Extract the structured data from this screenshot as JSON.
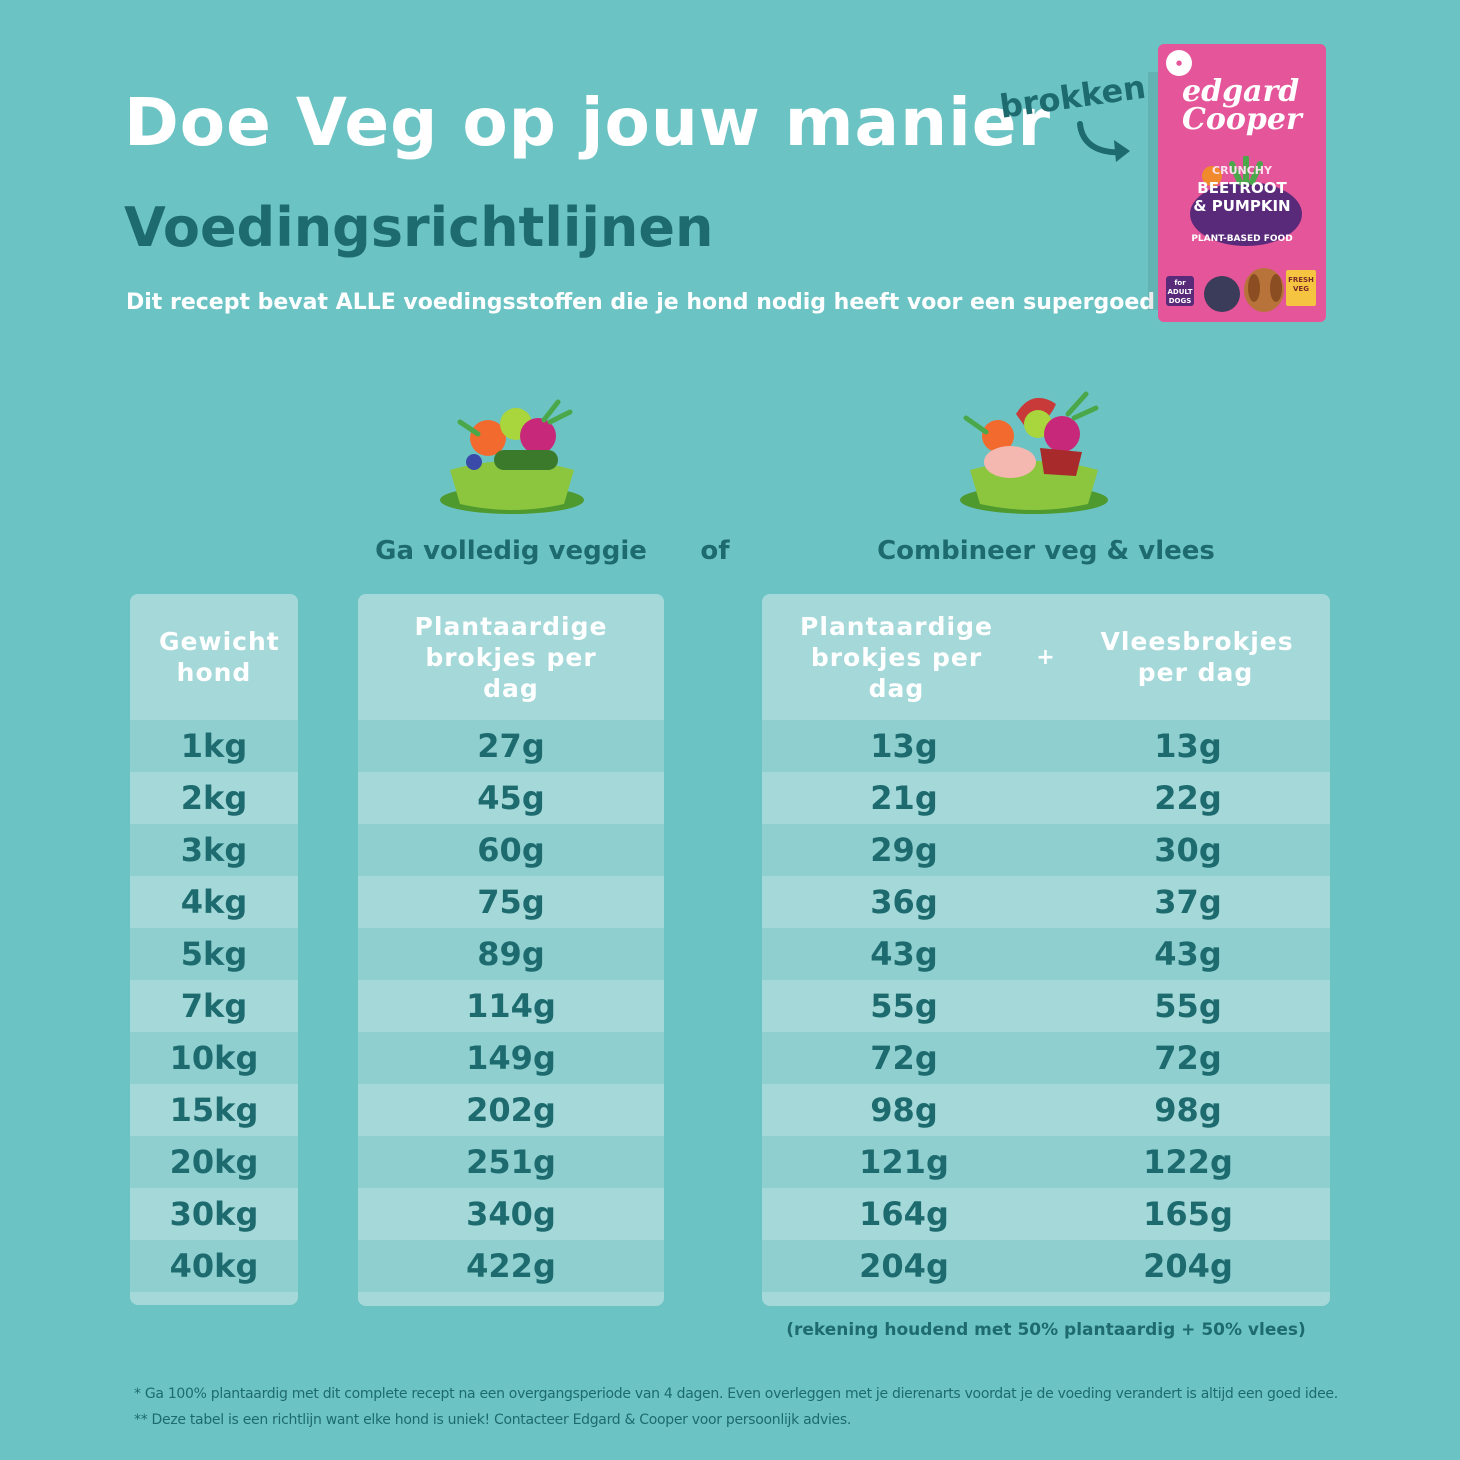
{
  "header": {
    "title": "Doe Veg op jouw manier",
    "subtitle": "Voedingsrichtlijnen",
    "tagline": "Dit recept bevat ALLE voedingsstoffen die je hond nodig heeft voor een supergoed leven",
    "brokken_label": "brokken"
  },
  "product": {
    "brand_line1": "edgard",
    "brand_line2": "Cooper",
    "crunchy": "CRUNCHY",
    "name_line1": "BEETROOT",
    "name_line2": "& PUMPKIN",
    "plant_based": "PLANT-BASED FOOD",
    "adult_badge": "for ADULT DOGS",
    "fresh_badge": "FRESH VEG",
    "brand_color": "#e4559a"
  },
  "options": {
    "veggie_heading": "Ga volledig veggie",
    "or_label": "of",
    "combo_heading": "Combineer veg & vlees"
  },
  "table": {
    "weight_header": "Gewicht hond",
    "veggie_header": "Plantaardige brokjes per dag",
    "combo_plant_header": "Plantaardige brokjes per dag",
    "plus": "+",
    "combo_meat_header": "Vleesbrokjes per dag",
    "rows": [
      {
        "weight": "1kg",
        "veggie": "27g",
        "plant": "13g",
        "meat": "13g"
      },
      {
        "weight": "2kg",
        "veggie": "45g",
        "plant": "21g",
        "meat": "22g"
      },
      {
        "weight": "3kg",
        "veggie": "60g",
        "plant": "29g",
        "meat": "30g"
      },
      {
        "weight": "4kg",
        "veggie": "75g",
        "plant": "36g",
        "meat": "37g"
      },
      {
        "weight": "5kg",
        "veggie": "89g",
        "plant": "43g",
        "meat": "43g"
      },
      {
        "weight": "7kg",
        "veggie": "114g",
        "plant": "55g",
        "meat": "55g"
      },
      {
        "weight": "10kg",
        "veggie": "149g",
        "plant": "72g",
        "meat": "72g"
      },
      {
        "weight": "15kg",
        "veggie": "202g",
        "plant": "98g",
        "meat": "98g"
      },
      {
        "weight": "20kg",
        "veggie": "251g",
        "plant": "121g",
        "meat": "122g"
      },
      {
        "weight": "30kg",
        "veggie": "340g",
        "plant": "164g",
        "meat": "165g"
      },
      {
        "weight": "40kg",
        "veggie": "422g",
        "plant": "204g",
        "meat": "204g"
      }
    ]
  },
  "note": "(rekening houdend met 50% plantaardig + 50% vlees)",
  "footnotes": [
    "* Ga 100% plantaardig met dit complete recept na een overgangsperiode van 4 dagen. Even overleggen met je dierenarts voordat je de voeding verandert is altijd een goed idee.",
    "** Deze tabel is een richtlijn want elke hond is uniek! Contacteer Edgard & Cooper voor persoonlijk advies."
  ]
}
